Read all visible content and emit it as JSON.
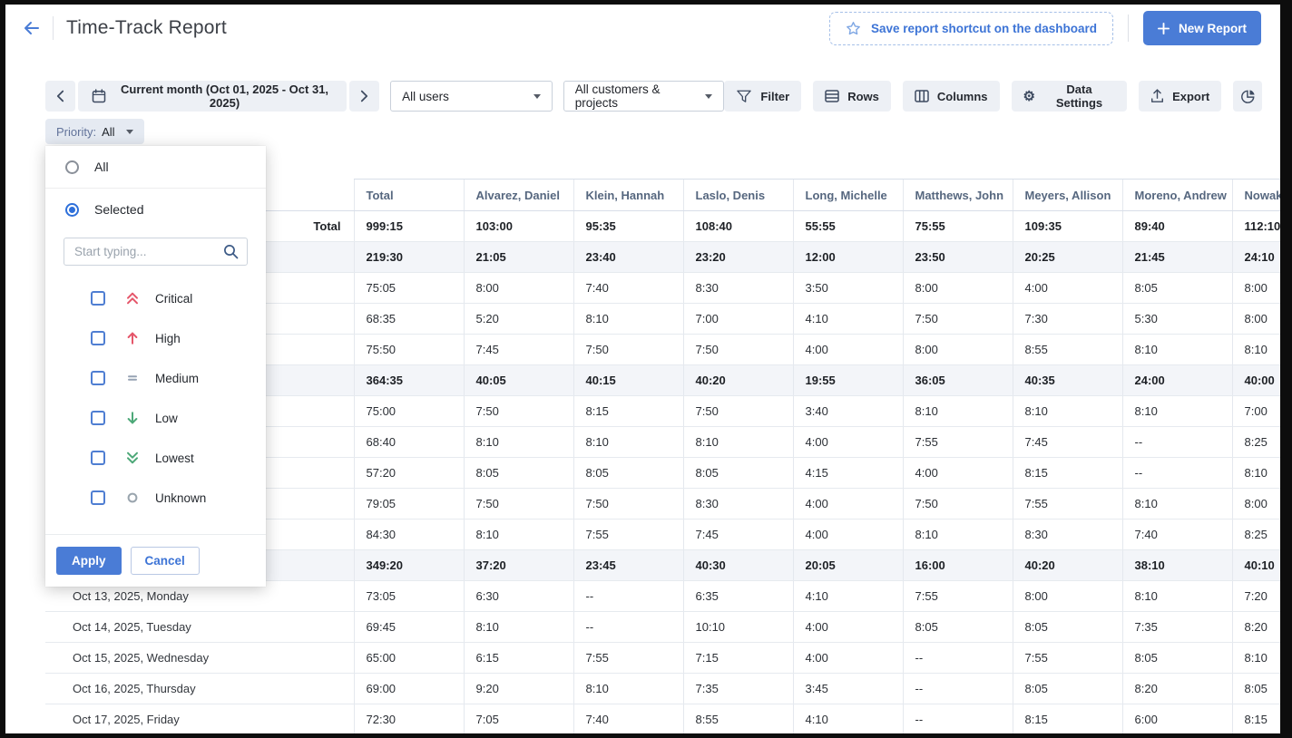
{
  "colors": {
    "accent_blue": "#4a7cd6",
    "link_blue": "#3d74d6",
    "toolbar_button_bg": "#edf0f5",
    "priority_chip_bg": "#e5eaf2",
    "week_row_bg": "#f3f5f9",
    "table_border": "#e4e8ee",
    "critical_red": "#e5566a",
    "low_green": "#4da878",
    "medium_gray": "#97a3b4",
    "unknown_gray": "#9aa5ae"
  },
  "header": {
    "title": "Time-Track Report",
    "save_shortcut_label": "Save report shortcut on the dashboard",
    "new_report_label": "New Report"
  },
  "toolbar": {
    "date_range_label": "Current month (Oct 01, 2025 - Oct 31, 2025)",
    "users_filter": "All users",
    "projects_filter": "All customers & projects",
    "buttons": [
      {
        "label": "Filter",
        "icon": "filter-icon"
      },
      {
        "label": "Rows",
        "icon": "rows-icon"
      },
      {
        "label": "Columns",
        "icon": "columns-icon"
      },
      {
        "label": "Data Settings",
        "icon": "gear-icon"
      },
      {
        "label": "Export",
        "icon": "export-icon"
      }
    ],
    "chart_button_icon": "pie-chart-icon"
  },
  "priority_filter": {
    "label": "Priority:",
    "value": "All",
    "popup": {
      "options": [
        {
          "label": "All",
          "selected": false
        },
        {
          "label": "Selected",
          "selected": true
        }
      ],
      "search_placeholder": "Start typing...",
      "items": [
        {
          "label": "Critical",
          "icon": "priority-critical-icon",
          "checked": false
        },
        {
          "label": "High",
          "icon": "priority-high-icon",
          "checked": false
        },
        {
          "label": "Medium",
          "icon": "priority-medium-icon",
          "checked": false
        },
        {
          "label": "Low",
          "icon": "priority-low-icon",
          "checked": false
        },
        {
          "label": "Lowest",
          "icon": "priority-lowest-icon",
          "checked": false
        },
        {
          "label": "Unknown",
          "icon": "priority-unknown-icon",
          "checked": false
        }
      ],
      "apply_label": "Apply",
      "cancel_label": "Cancel"
    }
  },
  "table": {
    "columns": [
      "",
      "Total",
      "Alvarez, Daniel",
      "Klein, Hannah",
      "Laslo, Denis",
      "Long, Michelle",
      "Matthews, John",
      "Meyers, Allison",
      "Moreno, Andrew",
      "Nowak, P"
    ],
    "rows": [
      {
        "label": "Total",
        "type": "total",
        "values": [
          "999:15",
          "103:00",
          "95:35",
          "108:40",
          "55:55",
          "75:55",
          "109:35",
          "89:40",
          "112:10"
        ]
      },
      {
        "label": "",
        "type": "week",
        "values": [
          "219:30",
          "21:05",
          "23:40",
          "23:20",
          "12:00",
          "23:50",
          "20:25",
          "21:45",
          "24:10"
        ]
      },
      {
        "label": "",
        "type": "day",
        "values": [
          "75:05",
          "8:00",
          "7:40",
          "8:30",
          "3:50",
          "8:00",
          "4:00",
          "8:05",
          "8:00"
        ]
      },
      {
        "label": "",
        "type": "day",
        "values": [
          "68:35",
          "5:20",
          "8:10",
          "7:00",
          "4:10",
          "7:50",
          "7:30",
          "5:30",
          "8:00"
        ]
      },
      {
        "label": "",
        "type": "day",
        "values": [
          "75:50",
          "7:45",
          "7:50",
          "7:50",
          "4:00",
          "8:00",
          "8:55",
          "8:10",
          "8:10"
        ]
      },
      {
        "label": "",
        "type": "week",
        "values": [
          "364:35",
          "40:05",
          "40:15",
          "40:20",
          "19:55",
          "36:05",
          "40:35",
          "24:00",
          "40:00"
        ]
      },
      {
        "label": "",
        "type": "day",
        "values": [
          "75:00",
          "7:50",
          "8:15",
          "7:50",
          "3:40",
          "8:10",
          "8:10",
          "8:10",
          "7:00"
        ]
      },
      {
        "label": "",
        "type": "day",
        "values": [
          "68:40",
          "8:10",
          "8:10",
          "8:10",
          "4:00",
          "7:55",
          "7:45",
          "--",
          "8:25"
        ]
      },
      {
        "label": "",
        "type": "day",
        "values": [
          "57:20",
          "8:05",
          "8:05",
          "8:05",
          "4:15",
          "4:00",
          "8:15",
          "--",
          "8:10"
        ]
      },
      {
        "label": "",
        "type": "day",
        "values": [
          "79:05",
          "7:50",
          "7:50",
          "8:30",
          "4:00",
          "7:50",
          "7:55",
          "8:10",
          "8:00"
        ]
      },
      {
        "label": "",
        "type": "day",
        "values": [
          "84:30",
          "8:10",
          "7:55",
          "7:45",
          "4:00",
          "8:10",
          "8:30",
          "7:40",
          "8:25"
        ]
      },
      {
        "label": "",
        "type": "week",
        "values": [
          "349:20",
          "37:20",
          "23:45",
          "40:30",
          "20:05",
          "16:00",
          "40:20",
          "38:10",
          "40:10"
        ]
      },
      {
        "label": "Oct 13, 2025, Monday",
        "type": "day",
        "values": [
          "73:05",
          "6:30",
          "--",
          "6:35",
          "4:10",
          "7:55",
          "8:00",
          "8:10",
          "7:20"
        ]
      },
      {
        "label": "Oct 14, 2025, Tuesday",
        "type": "day",
        "values": [
          "69:45",
          "8:10",
          "--",
          "10:10",
          "4:00",
          "8:05",
          "8:05",
          "7:35",
          "8:20"
        ]
      },
      {
        "label": "Oct 15, 2025, Wednesday",
        "type": "day",
        "values": [
          "65:00",
          "6:15",
          "7:55",
          "7:15",
          "4:00",
          "--",
          "7:55",
          "8:05",
          "8:10"
        ]
      },
      {
        "label": "Oct 16, 2025, Thursday",
        "type": "day",
        "values": [
          "69:00",
          "9:20",
          "8:10",
          "7:35",
          "3:45",
          "--",
          "8:05",
          "8:20",
          "8:05"
        ]
      },
      {
        "label": "Oct 17, 2025, Friday",
        "type": "day",
        "values": [
          "72:30",
          "7:05",
          "7:40",
          "8:55",
          "4:10",
          "--",
          "8:15",
          "6:00",
          "8:15"
        ]
      }
    ]
  }
}
